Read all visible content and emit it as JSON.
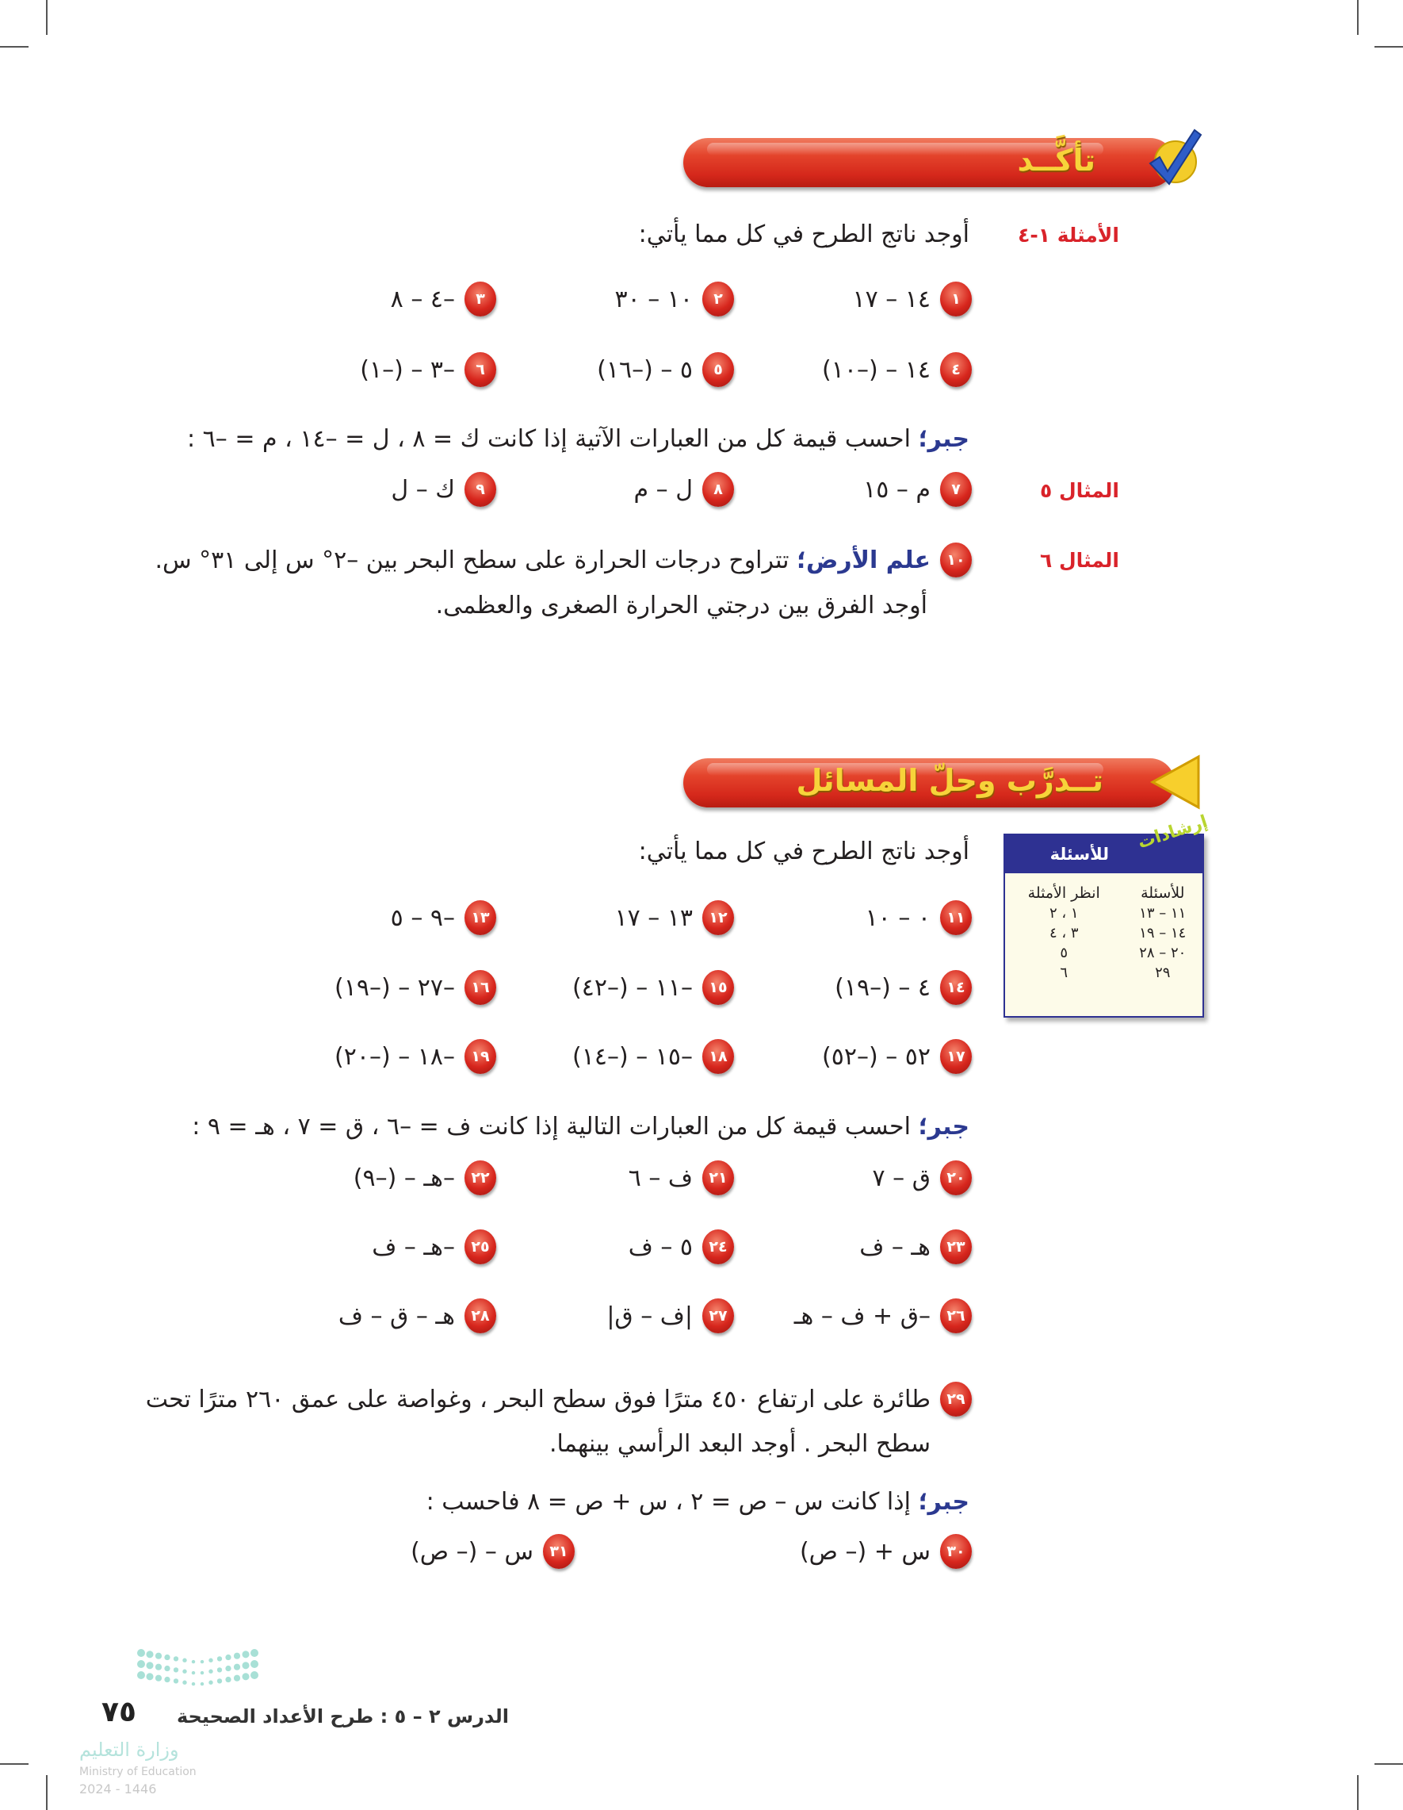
{
  "section1": {
    "title": "تأكَّــد",
    "examples_label": "الأمثلة ١-٤",
    "instruction": "أوجد ناتج الطرح في كل مما يأتي:",
    "items": [
      {
        "n": "١",
        "e": "١٤ – ١٧"
      },
      {
        "n": "٢",
        "e": "١٠ – ٣٠"
      },
      {
        "n": "٣",
        "e": "–٤ – ٨"
      },
      {
        "n": "٤",
        "e": "١٤ – (–١٠)"
      },
      {
        "n": "٥",
        "e": "٥ – (–١٦)"
      },
      {
        "n": "٦",
        "e": "–٣ – (–١)"
      }
    ],
    "algebra_keyword": "جبر؛",
    "algebra_text": "احسب قيمة كل من العبارات الآتية إذا كانت ك = ٨ ، ل = –١٤ ، م = –٦ :",
    "example5_label": "المثال ٥",
    "algebra_items": [
      {
        "n": "٧",
        "e": "م – ١٥"
      },
      {
        "n": "٨",
        "e": "ل – م"
      },
      {
        "n": "٩",
        "e": "ك – ل"
      }
    ],
    "example6_label": "المثال ٦",
    "problem10": {
      "n": "١٠",
      "keyword": "علم الأرض؛",
      "line1": "تتراوح درجات الحرارة على سطح البحر بين –٢° س إلى ٣١° س.",
      "line2": "أوجد الفرق بين درجتي الحرارة الصغرى والعظمى."
    }
  },
  "section2": {
    "title": "تــدرَّب وحلّ المسائل",
    "instruction": "أوجد ناتج الطرح في كل مما يأتي:",
    "items": [
      {
        "n": "١١",
        "e": "٠ – ١٠"
      },
      {
        "n": "١٢",
        "e": "١٣ – ١٧"
      },
      {
        "n": "١٣",
        "e": "–٩ – ٥"
      },
      {
        "n": "١٤",
        "e": "٤ – (–١٩)"
      },
      {
        "n": "١٥",
        "e": "–١١ – (–٤٢)"
      },
      {
        "n": "١٦",
        "e": "–٢٧ – (–١٩)"
      },
      {
        "n": "١٧",
        "e": "٥٢ – (–٥٢)"
      },
      {
        "n": "١٨",
        "e": "–١٥ – (–١٤)"
      },
      {
        "n": "١٩",
        "e": "–١٨ – (–٢٠)"
      }
    ],
    "algebra_keyword": "جبر؛",
    "algebra_text": "احسب قيمة كل من العبارات التالية إذا كانت ف = –٦ ، ق = ٧ ، هـ = ٩ :",
    "algebra_items": [
      {
        "n": "٢٠",
        "e": "ق – ٧"
      },
      {
        "n": "٢١",
        "e": "ف – ٦"
      },
      {
        "n": "٢٢",
        "e": "–هـ – (–٩)"
      },
      {
        "n": "٢٣",
        "e": "هـ – ف"
      },
      {
        "n": "٢٤",
        "e": "٥ – ف"
      },
      {
        "n": "٢٥",
        "e": "–هـ – ف"
      },
      {
        "n": "٢٦",
        "e": "–ق + ف – هـ"
      },
      {
        "n": "٢٧",
        "e": "|ف – ق|"
      },
      {
        "n": "٢٨",
        "e": "هـ – ق – ف"
      }
    ],
    "problem29": {
      "n": "٢٩",
      "line1": "طائرة على ارتفاع ٤٥٠ مترًا فوق سطح البحر ، وغواصة على عمق ٢٦٠ مترًا تحت",
      "line2": "سطح البحر . أوجد البعد الرأسي بينهما."
    },
    "algebra2_keyword": "جبر؛",
    "algebra2_text": "إذا كانت س – ص = ٢ ، س + ص = ٨ فاحسب :",
    "algebra2_items": [
      {
        "n": "٣٠",
        "e": "س + (– ص)"
      },
      {
        "n": "٣١",
        "e": "س – (– ص)"
      }
    ]
  },
  "tips": {
    "tag": "إرشادات",
    "title": "للأسئلة",
    "headers": [
      "للأسئلة",
      "انظر الأمثلة"
    ],
    "rows": [
      [
        "١١ – ١٣",
        "١ ، ٢"
      ],
      [
        "١٤ – ١٩",
        "٣ ، ٤"
      ],
      [
        "٢٠ – ٢٨",
        "٥"
      ],
      [
        "٢٩",
        "٦"
      ]
    ]
  },
  "footer": {
    "lesson": "الدرس ٢ – ٥ : طرح الأعداد الصحيحة",
    "page_number": "٧٥",
    "watermark_ar": "وزارة التعليم",
    "watermark_en": "Ministry of Education",
    "watermark_year": "2024 - 1446"
  },
  "colors": {
    "banner_red": "#d9301f",
    "title_yellow": "#f7d33a",
    "label_red": "#d9232a",
    "keyword_blue": "#2b3990",
    "tips_navy": "#2e3192",
    "tips_bg": "#fdfbe9",
    "badge_red": "#d7261d"
  }
}
